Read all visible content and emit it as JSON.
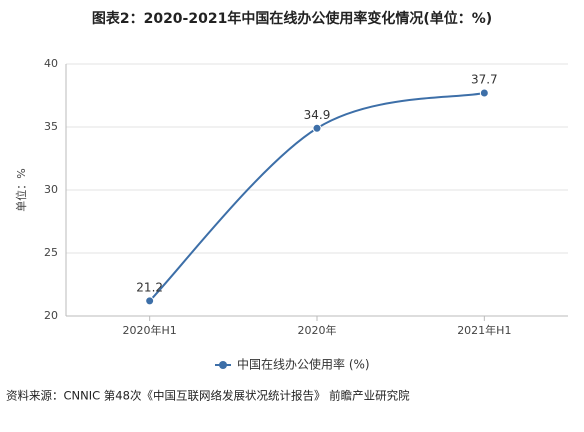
{
  "chart_data": {
    "type": "line",
    "title": "图表2：2020-2021年中国在线办公使用率变化情况(单位：%)",
    "y_label": "单位：%",
    "categories": [
      "2020年H1",
      "2020年",
      "2021年H1"
    ],
    "series": [
      {
        "name": "中国在线办公使用率 (%)",
        "color": "#3d6fa8",
        "values": [
          21.2,
          34.9,
          37.7
        ]
      }
    ],
    "ylim": [
      20,
      40
    ],
    "yticks": [
      20,
      25,
      30,
      35,
      40
    ],
    "grid": true,
    "smooth": true,
    "legend": "bottom",
    "source": "资料来源：CNNIC 第48次《中国互联网络发展状况统计报告》 前瞻产业研究院"
  }
}
